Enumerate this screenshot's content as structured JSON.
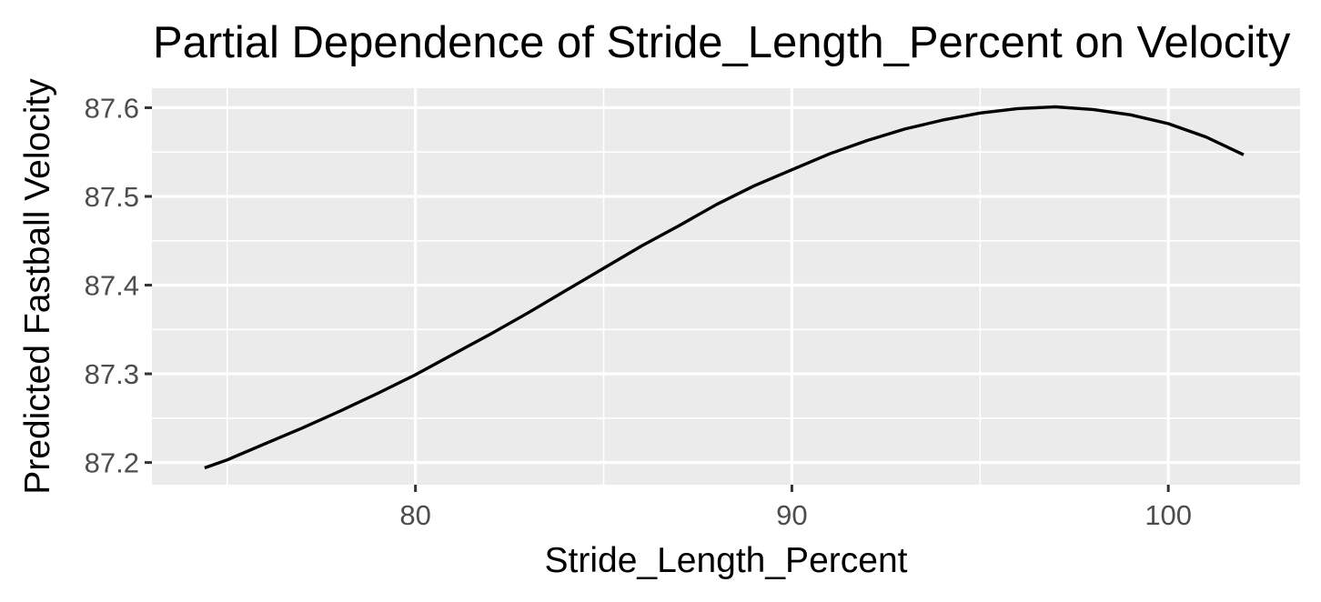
{
  "chart_data": {
    "type": "line",
    "title": "Partial Dependence of Stride_Length_Percent on Velocity",
    "xlabel": "Stride_Length_Percent",
    "ylabel": "Predicted Fastball Velocity",
    "xlim": [
      73,
      103.5
    ],
    "ylim": [
      87.175,
      87.622
    ],
    "x_ticks": [
      80,
      90,
      100
    ],
    "x_tick_labels": [
      "80",
      "90",
      "100"
    ],
    "y_ticks": [
      87.2,
      87.3,
      87.4,
      87.5,
      87.6
    ],
    "y_tick_labels": [
      "87.2",
      "87.3",
      "87.4",
      "87.5",
      "87.6"
    ],
    "grid": true,
    "legend": "none",
    "series": [
      {
        "color": "#000000",
        "x": [
          74.4,
          75,
          76,
          77,
          78,
          79,
          80,
          81,
          82,
          83,
          84,
          85,
          86,
          87,
          88,
          89,
          90,
          91,
          92,
          93,
          94,
          95,
          96,
          97,
          98,
          99,
          100,
          101,
          102
        ],
        "y": [
          87.194,
          87.203,
          87.221,
          87.239,
          87.258,
          87.278,
          87.299,
          87.322,
          87.345,
          87.369,
          87.394,
          87.419,
          87.444,
          87.467,
          87.491,
          87.512,
          87.53,
          87.548,
          87.563,
          87.576,
          87.586,
          87.594,
          87.599,
          87.601,
          87.598,
          87.592,
          87.582,
          87.567,
          87.547
        ]
      }
    ]
  }
}
